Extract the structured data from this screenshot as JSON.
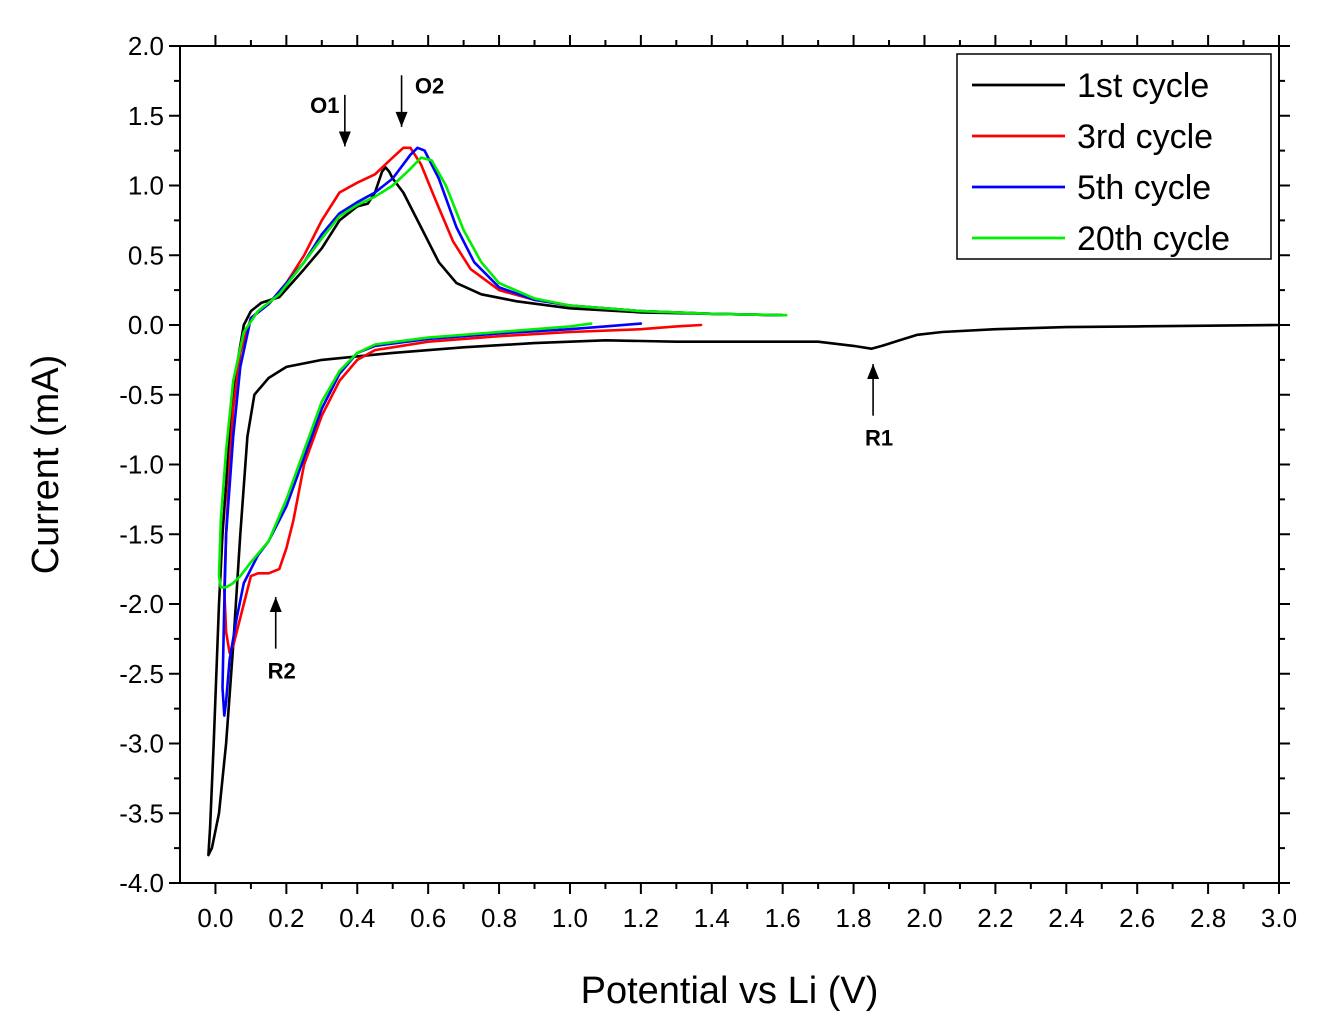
{
  "chart_data": {
    "type": "line",
    "title": "",
    "xlabel": "Potential vs Li (V)",
    "ylabel": "Current (mA)",
    "xlim": [
      -0.1,
      3.0
    ],
    "ylim": [
      -4.0,
      2.0
    ],
    "xticks": [
      "0.0",
      "0.2",
      "0.4",
      "0.6",
      "0.8",
      "1.0",
      "1.2",
      "1.4",
      "1.6",
      "1.8",
      "2.0",
      "2.2",
      "2.4",
      "2.6",
      "2.8",
      "3.0"
    ],
    "xtick_values": [
      0.0,
      0.2,
      0.4,
      0.6,
      0.8,
      1.0,
      1.2,
      1.4,
      1.6,
      1.8,
      2.0,
      2.2,
      2.4,
      2.6,
      2.8,
      3.0
    ],
    "yticks": [
      "2.0",
      "1.5",
      "1.0",
      "0.5",
      "0.0",
      "-0.5",
      "-1.0",
      "-1.5",
      "-2.0",
      "-2.5",
      "-3.0",
      "-3.5",
      "-4.0"
    ],
    "ytick_values": [
      2.0,
      1.5,
      1.0,
      0.5,
      0.0,
      -0.5,
      -1.0,
      -1.5,
      -2.0,
      -2.5,
      -3.0,
      -3.5,
      -4.0
    ],
    "legend_position": "top-right",
    "series": [
      {
        "name": "1st cycle",
        "color": "#000000",
        "points": [
          [
            3.0,
            0.0
          ],
          [
            2.8,
            -0.005
          ],
          [
            2.6,
            -0.01
          ],
          [
            2.4,
            -0.015
          ],
          [
            2.2,
            -0.03
          ],
          [
            2.05,
            -0.05
          ],
          [
            1.98,
            -0.07
          ],
          [
            1.93,
            -0.11
          ],
          [
            1.88,
            -0.15
          ],
          [
            1.85,
            -0.17
          ],
          [
            1.8,
            -0.15
          ],
          [
            1.7,
            -0.12
          ],
          [
            1.5,
            -0.12
          ],
          [
            1.3,
            -0.12
          ],
          [
            1.1,
            -0.11
          ],
          [
            0.9,
            -0.13
          ],
          [
            0.7,
            -0.16
          ],
          [
            0.5,
            -0.2
          ],
          [
            0.3,
            -0.25
          ],
          [
            0.2,
            -0.3
          ],
          [
            0.15,
            -0.38
          ],
          [
            0.11,
            -0.5
          ],
          [
            0.09,
            -0.8
          ],
          [
            0.07,
            -1.5
          ],
          [
            0.05,
            -2.3
          ],
          [
            0.03,
            -3.0
          ],
          [
            0.01,
            -3.5
          ],
          [
            -0.01,
            -3.75
          ],
          [
            -0.02,
            -3.8
          ],
          [
            -0.015,
            -3.6
          ],
          [
            -0.005,
            -3.0
          ],
          [
            0.01,
            -2.0
          ],
          [
            0.02,
            -1.5
          ],
          [
            0.04,
            -0.8
          ],
          [
            0.06,
            -0.3
          ],
          [
            0.08,
            0.0
          ],
          [
            0.1,
            0.1
          ],
          [
            0.13,
            0.16
          ],
          [
            0.18,
            0.2
          ],
          [
            0.25,
            0.4
          ],
          [
            0.3,
            0.55
          ],
          [
            0.35,
            0.75
          ],
          [
            0.4,
            0.85
          ],
          [
            0.43,
            0.87
          ],
          [
            0.45,
            0.95
          ],
          [
            0.47,
            1.1
          ],
          [
            0.48,
            1.13
          ],
          [
            0.49,
            1.1
          ],
          [
            0.5,
            1.05
          ],
          [
            0.53,
            0.95
          ],
          [
            0.58,
            0.7
          ],
          [
            0.63,
            0.45
          ],
          [
            0.68,
            0.3
          ],
          [
            0.75,
            0.22
          ],
          [
            0.85,
            0.17
          ],
          [
            1.0,
            0.12
          ],
          [
            1.2,
            0.09
          ],
          [
            1.4,
            0.08
          ],
          [
            1.6,
            0.07
          ]
        ]
      },
      {
        "name": "3rd cycle",
        "color": "#ff0000",
        "points": [
          [
            1.37,
            0.0
          ],
          [
            1.3,
            -0.01
          ],
          [
            1.2,
            -0.03
          ],
          [
            1.0,
            -0.05
          ],
          [
            0.8,
            -0.08
          ],
          [
            0.6,
            -0.12
          ],
          [
            0.45,
            -0.18
          ],
          [
            0.4,
            -0.25
          ],
          [
            0.35,
            -0.4
          ],
          [
            0.3,
            -0.65
          ],
          [
            0.25,
            -1.0
          ],
          [
            0.22,
            -1.4
          ],
          [
            0.2,
            -1.6
          ],
          [
            0.18,
            -1.75
          ],
          [
            0.15,
            -1.78
          ],
          [
            0.12,
            -1.78
          ],
          [
            0.1,
            -1.8
          ],
          [
            0.08,
            -2.0
          ],
          [
            0.06,
            -2.2
          ],
          [
            0.05,
            -2.3
          ],
          [
            0.04,
            -2.35
          ],
          [
            0.03,
            -2.2
          ],
          [
            0.025,
            -1.9
          ],
          [
            0.03,
            -1.5
          ],
          [
            0.04,
            -1.0
          ],
          [
            0.05,
            -0.6
          ],
          [
            0.07,
            -0.2
          ],
          [
            0.1,
            0.05
          ],
          [
            0.15,
            0.15
          ],
          [
            0.2,
            0.3
          ],
          [
            0.25,
            0.5
          ],
          [
            0.3,
            0.75
          ],
          [
            0.35,
            0.95
          ],
          [
            0.4,
            1.02
          ],
          [
            0.45,
            1.08
          ],
          [
            0.5,
            1.2
          ],
          [
            0.53,
            1.27
          ],
          [
            0.55,
            1.27
          ],
          [
            0.58,
            1.15
          ],
          [
            0.62,
            0.9
          ],
          [
            0.67,
            0.6
          ],
          [
            0.72,
            0.4
          ],
          [
            0.8,
            0.25
          ],
          [
            0.9,
            0.18
          ],
          [
            1.0,
            0.14
          ],
          [
            1.2,
            0.1
          ],
          [
            1.4,
            0.08
          ],
          [
            1.6,
            0.07
          ]
        ]
      },
      {
        "name": "5th cycle",
        "color": "#0000ff",
        "points": [
          [
            1.2,
            0.01
          ],
          [
            1.1,
            -0.01
          ],
          [
            1.0,
            -0.03
          ],
          [
            0.8,
            -0.06
          ],
          [
            0.6,
            -0.1
          ],
          [
            0.45,
            -0.15
          ],
          [
            0.4,
            -0.2
          ],
          [
            0.35,
            -0.35
          ],
          [
            0.3,
            -0.6
          ],
          [
            0.25,
            -0.95
          ],
          [
            0.2,
            -1.3
          ],
          [
            0.15,
            -1.55
          ],
          [
            0.12,
            -1.65
          ],
          [
            0.1,
            -1.75
          ],
          [
            0.08,
            -1.85
          ],
          [
            0.06,
            -2.1
          ],
          [
            0.04,
            -2.4
          ],
          [
            0.03,
            -2.7
          ],
          [
            0.025,
            -2.8
          ],
          [
            0.02,
            -2.6
          ],
          [
            0.025,
            -2.0
          ],
          [
            0.03,
            -1.5
          ],
          [
            0.05,
            -0.8
          ],
          [
            0.07,
            -0.3
          ],
          [
            0.1,
            0.05
          ],
          [
            0.15,
            0.15
          ],
          [
            0.2,
            0.3
          ],
          [
            0.25,
            0.45
          ],
          [
            0.3,
            0.65
          ],
          [
            0.35,
            0.8
          ],
          [
            0.4,
            0.88
          ],
          [
            0.45,
            0.95
          ],
          [
            0.5,
            1.05
          ],
          [
            0.55,
            1.22
          ],
          [
            0.57,
            1.27
          ],
          [
            0.59,
            1.25
          ],
          [
            0.63,
            1.05
          ],
          [
            0.68,
            0.7
          ],
          [
            0.73,
            0.45
          ],
          [
            0.8,
            0.27
          ],
          [
            0.9,
            0.18
          ],
          [
            1.0,
            0.14
          ],
          [
            1.2,
            0.1
          ],
          [
            1.4,
            0.08
          ],
          [
            1.6,
            0.07
          ]
        ]
      },
      {
        "name": "20th cycle",
        "color": "#00ee00",
        "points": [
          [
            1.06,
            0.01
          ],
          [
            1.0,
            -0.01
          ],
          [
            0.8,
            -0.05
          ],
          [
            0.6,
            -0.09
          ],
          [
            0.45,
            -0.14
          ],
          [
            0.4,
            -0.2
          ],
          [
            0.35,
            -0.33
          ],
          [
            0.3,
            -0.55
          ],
          [
            0.25,
            -0.9
          ],
          [
            0.2,
            -1.25
          ],
          [
            0.15,
            -1.55
          ],
          [
            0.1,
            -1.7
          ],
          [
            0.07,
            -1.8
          ],
          [
            0.05,
            -1.85
          ],
          [
            0.03,
            -1.88
          ],
          [
            0.015,
            -1.88
          ],
          [
            0.01,
            -1.8
          ],
          [
            0.015,
            -1.4
          ],
          [
            0.03,
            -0.9
          ],
          [
            0.05,
            -0.4
          ],
          [
            0.08,
            -0.05
          ],
          [
            0.12,
            0.1
          ],
          [
            0.18,
            0.22
          ],
          [
            0.25,
            0.45
          ],
          [
            0.3,
            0.62
          ],
          [
            0.35,
            0.78
          ],
          [
            0.4,
            0.86
          ],
          [
            0.45,
            0.92
          ],
          [
            0.5,
            1.0
          ],
          [
            0.55,
            1.12
          ],
          [
            0.58,
            1.2
          ],
          [
            0.61,
            1.18
          ],
          [
            0.65,
            1.0
          ],
          [
            0.7,
            0.68
          ],
          [
            0.75,
            0.45
          ],
          [
            0.8,
            0.3
          ],
          [
            0.9,
            0.19
          ],
          [
            1.0,
            0.14
          ],
          [
            1.2,
            0.1
          ],
          [
            1.4,
            0.08
          ],
          [
            1.61,
            0.07
          ]
        ]
      }
    ],
    "annotations": [
      {
        "label": "O1",
        "x": 0.365,
        "y_tip": 1.28,
        "y_tail": 1.65,
        "direction": "down"
      },
      {
        "label": "O2",
        "x": 0.525,
        "y_tip": 1.42,
        "y_tail": 1.79,
        "direction": "down"
      },
      {
        "label": "R1",
        "x": 1.855,
        "y_tip": -0.28,
        "y_tail": -0.65,
        "direction": "up"
      },
      {
        "label": "R2",
        "x": 0.17,
        "y_tip": -1.95,
        "y_tail": -2.32,
        "direction": "up"
      }
    ]
  }
}
